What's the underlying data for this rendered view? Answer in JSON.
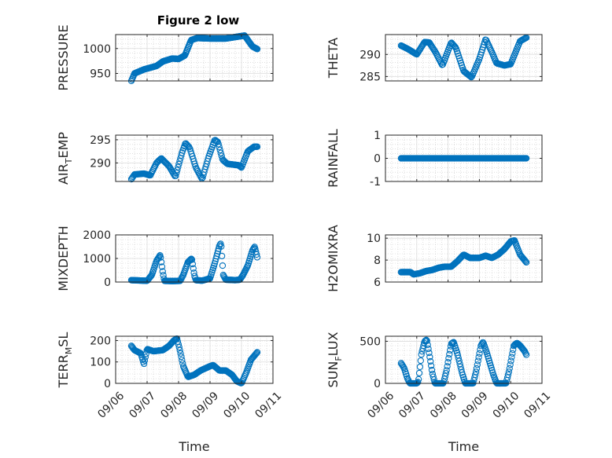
{
  "figure": {
    "title": "Figure 2 low"
  },
  "colors": {
    "marker": "#0072BD",
    "axes": "#262626",
    "grid": "#c9c9c9",
    "background": "#ffffff"
  },
  "chart_data": [
    {
      "id": "pressure",
      "type": "scatter",
      "title": "Figure 2 low",
      "ylabel": "PRESSURE",
      "ylabel_parts": [
        {
          "t": "PRESSURE"
        }
      ],
      "xlabel": "",
      "xlim": [
        0,
        5
      ],
      "ylim": [
        935,
        1028
      ],
      "yticks": [
        950,
        1000
      ],
      "ytick_labels": [
        "950",
        "1000"
      ],
      "xticks": [
        0,
        1,
        2,
        3,
        4,
        5
      ],
      "xtick_labels": [],
      "grid": true,
      "keypoints": [
        [
          0.5,
          935
        ],
        [
          0.6,
          950
        ],
        [
          0.9,
          958
        ],
        [
          1.3,
          965
        ],
        [
          1.5,
          974
        ],
        [
          1.8,
          980
        ],
        [
          2.0,
          979
        ],
        [
          2.2,
          986
        ],
        [
          2.4,
          1017
        ],
        [
          2.6,
          1021
        ],
        [
          3.0,
          1020
        ],
        [
          3.5,
          1020
        ],
        [
          3.9,
          1024
        ],
        [
          4.1,
          1026
        ],
        [
          4.35,
          1004
        ],
        [
          4.5,
          999
        ]
      ],
      "n": 200
    },
    {
      "id": "theta",
      "type": "scatter",
      "ylabel": "THETA",
      "ylabel_parts": [
        {
          "t": "THETA"
        }
      ],
      "xlabel": "",
      "xlim": [
        0,
        5
      ],
      "ylim": [
        284,
        294.5
      ],
      "yticks": [
        285,
        290
      ],
      "ytick_labels": [
        "285",
        "290"
      ],
      "xticks": [
        0,
        1,
        2,
        3,
        4,
        5
      ],
      "xtick_labels": [],
      "grid": true,
      "keypoints": [
        [
          0.5,
          292
        ],
        [
          0.7,
          291.3
        ],
        [
          1.0,
          290
        ],
        [
          1.25,
          292.8
        ],
        [
          1.4,
          292.7
        ],
        [
          1.6,
          290.5
        ],
        [
          1.82,
          287.5
        ],
        [
          2.1,
          292.7
        ],
        [
          2.25,
          291.5
        ],
        [
          2.5,
          286.2
        ],
        [
          2.75,
          284.8
        ],
        [
          3.0,
          289
        ],
        [
          3.2,
          293.5
        ],
        [
          3.4,
          290.5
        ],
        [
          3.55,
          288
        ],
        [
          3.8,
          287.5
        ],
        [
          4.0,
          287.8
        ],
        [
          4.3,
          293
        ],
        [
          4.5,
          293.8
        ]
      ],
      "n": 160
    },
    {
      "id": "air_temp",
      "type": "scatter",
      "ylabel": "AIR_TEMP",
      "ylabel_parts": [
        {
          "t": "AIR"
        },
        {
          "t": "T",
          "sub": true
        },
        {
          "t": "EMP"
        }
      ],
      "xlabel": "",
      "xlim": [
        0,
        5
      ],
      "ylim": [
        286,
        296
      ],
      "yticks": [
        290,
        295
      ],
      "ytick_labels": [
        "290",
        "295"
      ],
      "xticks": [
        0,
        1,
        2,
        3,
        4,
        5
      ],
      "xtick_labels": [],
      "grid": true,
      "keypoints": [
        [
          0.5,
          286.5
        ],
        [
          0.6,
          287.5
        ],
        [
          0.9,
          287.7
        ],
        [
          1.1,
          287.3
        ],
        [
          1.3,
          290
        ],
        [
          1.45,
          291
        ],
        [
          1.7,
          289.3
        ],
        [
          1.9,
          287
        ],
        [
          2.1,
          292
        ],
        [
          2.22,
          294.3
        ],
        [
          2.35,
          293.3
        ],
        [
          2.55,
          289
        ],
        [
          2.75,
          286.5
        ],
        [
          2.95,
          291.2
        ],
        [
          3.15,
          295
        ],
        [
          3.25,
          294.5
        ],
        [
          3.4,
          290.7
        ],
        [
          3.55,
          289.8
        ],
        [
          3.9,
          289.5
        ],
        [
          4.0,
          289
        ],
        [
          4.2,
          292.5
        ],
        [
          4.4,
          293.5
        ],
        [
          4.5,
          293.5
        ]
      ],
      "n": 160
    },
    {
      "id": "rainfall",
      "type": "scatter",
      "ylabel": "RAINFALL",
      "ylabel_parts": [
        {
          "t": "RAINFALL"
        }
      ],
      "xlabel": "",
      "xlim": [
        0,
        5
      ],
      "ylim": [
        -1,
        1
      ],
      "yticks": [
        -1,
        0,
        1
      ],
      "ytick_labels": [
        "-1",
        "0",
        "1"
      ],
      "xticks": [
        0,
        1,
        2,
        3,
        4,
        5
      ],
      "xtick_labels": [],
      "grid": true,
      "keypoints": [
        [
          0.5,
          0
        ],
        [
          4.5,
          0
        ]
      ],
      "n": 170
    },
    {
      "id": "mixdepth",
      "type": "scatter",
      "ylabel": "MIXDEPTH",
      "ylabel_parts": [
        {
          "t": "MIXDEPTH"
        }
      ],
      "xlabel": "",
      "xlim": [
        0,
        5
      ],
      "ylim": [
        0,
        2000
      ],
      "yticks": [
        0,
        1000,
        2000
      ],
      "ytick_labels": [
        "0",
        "1000",
        "2000"
      ],
      "xticks": [
        0,
        1,
        2,
        3,
        4,
        5
      ],
      "xtick_labels": [],
      "grid": true,
      "keypoints": [
        [
          0.5,
          80
        ],
        [
          0.85,
          60
        ],
        [
          1.0,
          50
        ],
        [
          1.15,
          300
        ],
        [
          1.3,
          900
        ],
        [
          1.42,
          1150
        ],
        [
          1.5,
          400
        ],
        [
          1.55,
          50
        ],
        [
          1.8,
          40
        ],
        [
          2.05,
          50
        ],
        [
          2.15,
          300
        ],
        [
          2.3,
          850
        ],
        [
          2.42,
          1000
        ],
        [
          2.5,
          300
        ],
        [
          2.55,
          80
        ],
        [
          2.75,
          60
        ],
        [
          3.0,
          150
        ],
        [
          3.15,
          800
        ],
        [
          3.3,
          1550
        ],
        [
          3.35,
          1650
        ],
        [
          3.42,
          300
        ],
        [
          3.5,
          100
        ],
        [
          3.8,
          80
        ],
        [
          3.95,
          100
        ],
        [
          4.05,
          300
        ],
        [
          4.2,
          700
        ],
        [
          4.35,
          1350
        ],
        [
          4.42,
          1500
        ],
        [
          4.5,
          1050
        ]
      ],
      "n": 190
    },
    {
      "id": "h2omixra",
      "type": "scatter",
      "ylabel": "H2OMIXRA",
      "ylabel_parts": [
        {
          "t": "H2OMIXRA"
        }
      ],
      "xlabel": "",
      "xlim": [
        0,
        5
      ],
      "ylim": [
        6,
        10.3
      ],
      "yticks": [
        6,
        8,
        10
      ],
      "ytick_labels": [
        "6",
        "8",
        "10"
      ],
      "xticks": [
        0,
        1,
        2,
        3,
        4,
        5
      ],
      "xtick_labels": [],
      "grid": true,
      "keypoints": [
        [
          0.5,
          6.9
        ],
        [
          0.8,
          6.9
        ],
        [
          0.9,
          6.7
        ],
        [
          1.1,
          6.8
        ],
        [
          1.3,
          7.0
        ],
        [
          1.5,
          7.1
        ],
        [
          1.7,
          7.3
        ],
        [
          1.9,
          7.4
        ],
        [
          2.1,
          7.4
        ],
        [
          2.3,
          7.9
        ],
        [
          2.5,
          8.5
        ],
        [
          2.7,
          8.2
        ],
        [
          3.0,
          8.2
        ],
        [
          3.2,
          8.4
        ],
        [
          3.4,
          8.2
        ],
        [
          3.6,
          8.5
        ],
        [
          3.8,
          9.0
        ],
        [
          4.0,
          9.7
        ],
        [
          4.12,
          9.8
        ],
        [
          4.3,
          8.5
        ],
        [
          4.5,
          7.8
        ]
      ],
      "n": 170
    },
    {
      "id": "terr_msl",
      "type": "scatter",
      "ylabel": "TERR_MSL",
      "ylabel_parts": [
        {
          "t": "TERR"
        },
        {
          "t": "M",
          "sub": true
        },
        {
          "t": "SL"
        }
      ],
      "xlabel": "Time",
      "xlim": [
        0,
        5
      ],
      "ylim": [
        0,
        220
      ],
      "yticks": [
        0,
        100,
        200
      ],
      "ytick_labels": [
        "0",
        "100",
        "200"
      ],
      "xticks": [
        0,
        1,
        2,
        3,
        4,
        5
      ],
      "xtick_labels": [
        "09/06",
        "09/07",
        "09/08",
        "09/09",
        "09/10",
        "09/11"
      ],
      "grid": true,
      "keypoints": [
        [
          0.5,
          175
        ],
        [
          0.6,
          155
        ],
        [
          0.8,
          140
        ],
        [
          0.9,
          90
        ],
        [
          1.0,
          160
        ],
        [
          1.2,
          150
        ],
        [
          1.5,
          155
        ],
        [
          1.7,
          175
        ],
        [
          1.85,
          200
        ],
        [
          1.95,
          210
        ],
        [
          2.05,
          150
        ],
        [
          2.15,
          80
        ],
        [
          2.3,
          30
        ],
        [
          2.5,
          40
        ],
        [
          2.7,
          60
        ],
        [
          3.0,
          80
        ],
        [
          3.1,
          85
        ],
        [
          3.3,
          60
        ],
        [
          3.5,
          60
        ],
        [
          3.7,
          40
        ],
        [
          3.85,
          10
        ],
        [
          4.0,
          0
        ],
        [
          4.15,
          50
        ],
        [
          4.3,
          110
        ],
        [
          4.5,
          145
        ]
      ],
      "n": 180
    },
    {
      "id": "sun_flux",
      "type": "scatter",
      "ylabel": "SUN_FLUX",
      "ylabel_parts": [
        {
          "t": "SUN"
        },
        {
          "t": "F",
          "sub": true
        },
        {
          "t": "LUX"
        }
      ],
      "xlabel": "Time",
      "xlim": [
        0,
        5
      ],
      "ylim": [
        0,
        560
      ],
      "yticks": [
        0,
        500
      ],
      "ytick_labels": [
        "0",
        "500"
      ],
      "xticks": [
        0,
        1,
        2,
        3,
        4,
        5
      ],
      "xtick_labels": [
        "09/06",
        "09/07",
        "09/08",
        "09/09",
        "09/10",
        "09/11"
      ],
      "grid": true,
      "keypoints": [
        [
          0.5,
          240
        ],
        [
          0.6,
          180
        ],
        [
          0.7,
          60
        ],
        [
          0.78,
          0
        ],
        [
          1.0,
          0
        ],
        [
          1.05,
          20
        ],
        [
          1.15,
          350
        ],
        [
          1.25,
          500
        ],
        [
          1.32,
          520
        ],
        [
          1.4,
          350
        ],
        [
          1.5,
          120
        ],
        [
          1.58,
          0
        ],
        [
          1.85,
          0
        ],
        [
          1.95,
          150
        ],
        [
          2.1,
          470
        ],
        [
          2.18,
          490
        ],
        [
          2.3,
          350
        ],
        [
          2.45,
          120
        ],
        [
          2.55,
          0
        ],
        [
          2.8,
          0
        ],
        [
          2.9,
          150
        ],
        [
          3.05,
          450
        ],
        [
          3.12,
          490
        ],
        [
          3.25,
          350
        ],
        [
          3.45,
          100
        ],
        [
          3.55,
          0
        ],
        [
          3.85,
          0
        ],
        [
          3.95,
          150
        ],
        [
          4.1,
          450
        ],
        [
          4.2,
          480
        ],
        [
          4.3,
          450
        ],
        [
          4.45,
          380
        ],
        [
          4.5,
          340
        ]
      ],
      "n": 180
    }
  ]
}
